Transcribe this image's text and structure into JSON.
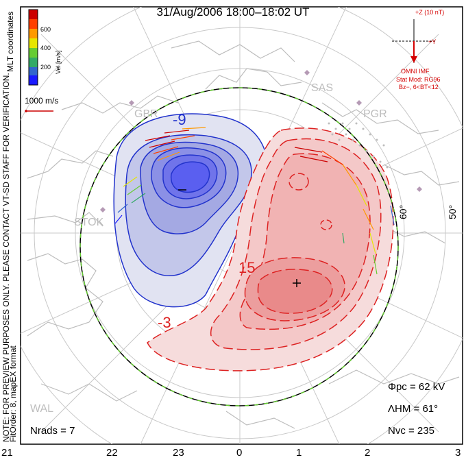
{
  "title": "31/Aug/2006 18:00–18:02 UT",
  "colorbar": {
    "ticks": [
      "600",
      "400",
      "200"
    ],
    "label": "Vel [m/s]",
    "colors": [
      "#cc0000",
      "#ff4000",
      "#ff9900",
      "#e6e600",
      "#66cc33",
      "#33aa66",
      "#3366cc",
      "#1a1aff"
    ]
  },
  "mlt_label": "MLT coordinates",
  "scale_label": "1000 m/s",
  "side_note_1": "NOTE: FOR PREVIEW PURPOSES ONLY. PLEASE CONTACT VT-SD STAFF FOR VERIFICATION.",
  "side_note_2": "FitOrder: 8, mapEX format",
  "imf": {
    "z_label": "+Z (10 nT)",
    "y_label": "+Y",
    "source": "OMNI IMF",
    "model": "Stat Mod: RG96",
    "condition": "Bz−, 6<BT<12"
  },
  "stations": [
    "GBR",
    "SAS",
    "PGR",
    "STOK",
    "WAL"
  ],
  "lat_labels": [
    "60°",
    "50°"
  ],
  "contour_labels": [
    "-9",
    "15",
    "-3"
  ],
  "stats": {
    "phi": "Φpc = 62 kV",
    "lambda": "ΛHM = 61°",
    "nvc": "Nvc = 235",
    "nrads": "Nrads = 7"
  },
  "xaxis": [
    "21",
    "22",
    "23",
    "0",
    "1",
    "2",
    "3"
  ],
  "colors": {
    "negative": "#2233cc",
    "positive": "#dd2222",
    "hm_boundary": "#66cc33"
  }
}
